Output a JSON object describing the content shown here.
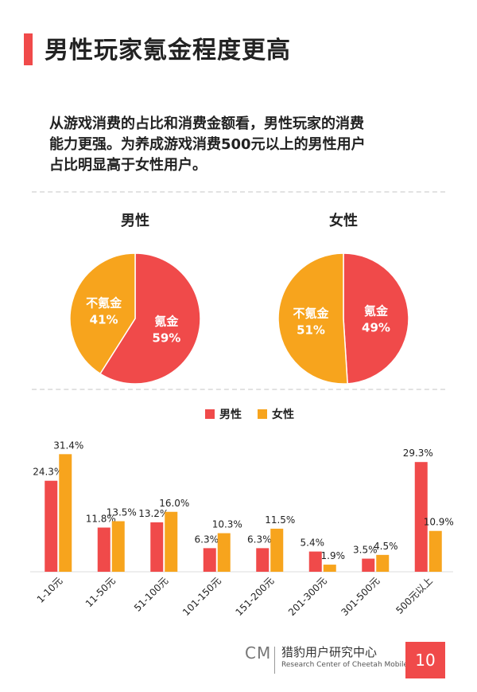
{
  "page": {
    "title": "男性玩家氪金程度更高",
    "intro_lines": [
      "从游戏消费的占比和消费金额看，男性玩家的消费",
      "能力更强。为养成游戏消费500元以上的男性用户",
      "占比明显高于女性用户。"
    ],
    "page_number": "10"
  },
  "footer": {
    "logo": "CM",
    "name": "猎豹用户研究中心",
    "sub": "Research Center of Cheetah Mobile"
  },
  "colors": {
    "male": "#f04a4a",
    "female": "#f7a41d",
    "accent": "#f04a4a"
  },
  "chart_data": [
    {
      "type": "pie",
      "title": "男性",
      "slices": [
        {
          "label": "氪金",
          "value": 59,
          "display": "59%"
        },
        {
          "label": "不氪金",
          "value": 41,
          "display": "41%"
        }
      ]
    },
    {
      "type": "pie",
      "title": "女性",
      "slices": [
        {
          "label": "氪金",
          "value": 49,
          "display": "49%"
        },
        {
          "label": "不氪金",
          "value": 51,
          "display": "51%"
        }
      ]
    },
    {
      "type": "bar",
      "categories": [
        "1-10元",
        "11-50元",
        "51-100元",
        "101-150元",
        "151-200元",
        "201-300元",
        "301-500元",
        "500元以上"
      ],
      "series": [
        {
          "name": "男性",
          "values": [
            24.3,
            11.8,
            13.2,
            6.3,
            6.3,
            5.4,
            3.5,
            29.3
          ]
        },
        {
          "name": "女性",
          "values": [
            31.4,
            13.5,
            16.0,
            10.3,
            11.5,
            1.9,
            4.5,
            10.9
          ]
        }
      ],
      "ylim": [
        0,
        35
      ],
      "legend": "top-center"
    }
  ]
}
